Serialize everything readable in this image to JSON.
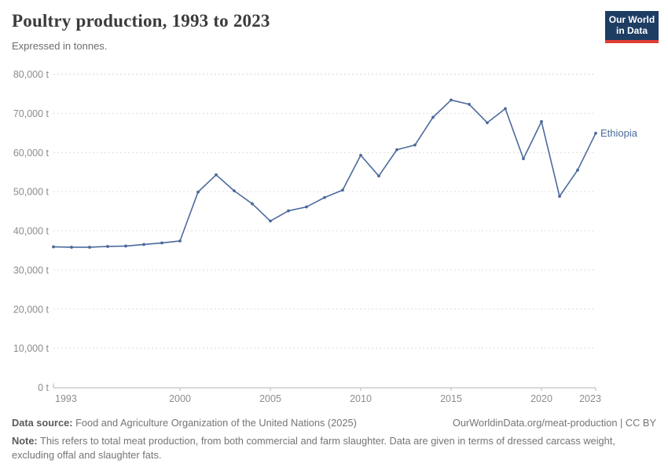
{
  "logo": {
    "line1": "Our World",
    "line2": "in Data",
    "bg_color": "#1d3d63",
    "bar_color": "#e13d33"
  },
  "chart_data": {
    "type": "line",
    "title": "Poultry production, 1993 to 2023",
    "subtitle": "Expressed in tonnes.",
    "unit": "tonnes",
    "grid": "horizontal-dashed",
    "legend_position": "end-of-line-label",
    "xlim": [
      1993,
      2023
    ],
    "ylim": [
      0,
      80000
    ],
    "x": [
      1993,
      1994,
      1995,
      1996,
      1997,
      1998,
      1999,
      2000,
      2001,
      2002,
      2003,
      2004,
      2005,
      2006,
      2007,
      2008,
      2009,
      2010,
      2011,
      2012,
      2013,
      2014,
      2015,
      2016,
      2017,
      2018,
      2019,
      2020,
      2021,
      2022,
      2023
    ],
    "series": [
      {
        "name": "Ethiopia",
        "color": "#4c6a9c",
        "values": [
          35900,
          35800,
          35800,
          36000,
          36100,
          36500,
          36900,
          37400,
          49900,
          54300,
          50200,
          46900,
          42500,
          45100,
          46100,
          48500,
          50400,
          59300,
          54000,
          60700,
          61900,
          69000,
          73400,
          72300,
          67600,
          71200,
          58400,
          67900,
          48800,
          55500,
          64900
        ]
      }
    ],
    "yticks": [
      {
        "value": 0,
        "label": "0 t"
      },
      {
        "value": 10000,
        "label": "10,000 t"
      },
      {
        "value": 20000,
        "label": "20,000 t"
      },
      {
        "value": 30000,
        "label": "30,000 t"
      },
      {
        "value": 40000,
        "label": "40,000 t"
      },
      {
        "value": 50000,
        "label": "50,000 t"
      },
      {
        "value": 60000,
        "label": "60,000 t"
      },
      {
        "value": 70000,
        "label": "70,000 t"
      },
      {
        "value": 80000,
        "label": "80,000 t"
      }
    ],
    "xticks": [
      {
        "value": 1993,
        "label": "1993"
      },
      {
        "value": 2000,
        "label": "2000"
      },
      {
        "value": 2005,
        "label": "2005"
      },
      {
        "value": 2010,
        "label": "2010"
      },
      {
        "value": 2015,
        "label": "2015"
      },
      {
        "value": 2020,
        "label": "2020"
      },
      {
        "value": 2023,
        "label": "2023"
      }
    ]
  },
  "footer": {
    "datasource_label": "Data source:",
    "datasource_text": " Food and Agriculture Organization of the United Nations (2025)",
    "link_text": "OurWorldinData.org/meat-production | CC BY",
    "note_label": "Note:",
    "note_text": " This refers to total meat production, from both commercial and farm slaughter. Data are given in terms of dressed carcass weight, excluding offal and slaughter fats."
  }
}
